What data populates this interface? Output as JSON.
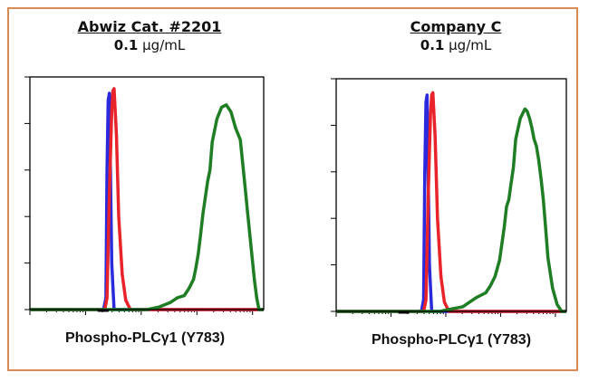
{
  "frame_color": "#d98a55",
  "panels": [
    {
      "title": "Abwiz Cat. #2201",
      "conc_value": "0.1",
      "conc_unit": "µg/mL",
      "xlabel": "Phospho-PLCγ1 (Y783)"
    },
    {
      "title": "Company C",
      "conc_value": "0.1",
      "conc_unit": "µg/mL",
      "xlabel": "Phospho-PLCγ1 (Y783)"
    }
  ],
  "chart_data": [
    {
      "type": "line",
      "title": "Abwiz Cat. #2201 0.1 µg/mL",
      "xlabel": "Phospho-PLCγ1 (Y783)",
      "ylabel": "",
      "xlim": [
        0,
        100
      ],
      "ylim": [
        0,
        100
      ],
      "series": [
        {
          "color": "#2a2adc",
          "x": [
            0,
            31.5,
            32.5,
            33,
            33.5,
            34,
            35,
            36,
            100
          ],
          "y": [
            0,
            0,
            5,
            60,
            90,
            93,
            20,
            0,
            0
          ]
        },
        {
          "color": "#e8242a",
          "x": [
            0,
            32,
            33,
            34,
            35,
            35.5,
            36,
            37,
            38,
            39.5,
            41,
            43,
            100
          ],
          "y": [
            0,
            0,
            5,
            50,
            85,
            94,
            95,
            75,
            40,
            15,
            4,
            0,
            0
          ]
        },
        {
          "color": "#1f7d24",
          "x": [
            0,
            50,
            55,
            60,
            63,
            66,
            68,
            70,
            71,
            72,
            73,
            74,
            75,
            76,
            77,
            78,
            80,
            82,
            84,
            86,
            88,
            90,
            91,
            92,
            93,
            94,
            95,
            96,
            97,
            98,
            100
          ],
          "y": [
            0,
            0,
            1,
            3,
            5,
            6,
            9,
            13,
            18,
            24,
            32,
            41,
            48,
            55,
            60,
            72,
            82,
            87,
            88,
            85,
            78,
            73,
            63,
            53,
            43,
            33,
            23,
            13,
            5,
            0,
            0
          ]
        }
      ]
    },
    {
      "type": "line",
      "title": "Company C 0.1 µg/mL",
      "xlabel": "Phospho-PLCγ1 (Y783)",
      "ylabel": "",
      "xlim": [
        0,
        100
      ],
      "ylim": [
        0,
        100
      ],
      "series": [
        {
          "color": "#2a2adc",
          "x": [
            0,
            37,
            38,
            38.5,
            39,
            39.5,
            40.5,
            41.5,
            100
          ],
          "y": [
            0,
            0,
            5,
            60,
            90,
            93,
            20,
            0,
            0
          ]
        },
        {
          "color": "#e8242a",
          "x": [
            0,
            38,
            39,
            40,
            41,
            41.5,
            42,
            43,
            44,
            45.5,
            47,
            49,
            100
          ],
          "y": [
            0,
            0,
            5,
            50,
            85,
            93,
            94,
            75,
            40,
            15,
            4,
            0,
            0
          ]
        },
        {
          "color": "#1f7d24",
          "x": [
            0,
            45,
            50,
            55,
            58,
            61,
            63,
            65,
            67,
            69,
            71,
            73,
            74,
            75,
            76,
            77,
            78,
            80,
            82,
            83,
            84,
            85,
            86,
            87,
            88,
            89,
            90,
            91,
            92,
            94,
            96,
            98,
            100
          ],
          "y": [
            0,
            0,
            1,
            2,
            4,
            6,
            7,
            8,
            11,
            15,
            22,
            36,
            45,
            48,
            55,
            62,
            74,
            83,
            87,
            86,
            83,
            79,
            74,
            71,
            65,
            57,
            48,
            36,
            23,
            10,
            3,
            0,
            0
          ]
        }
      ]
    }
  ]
}
